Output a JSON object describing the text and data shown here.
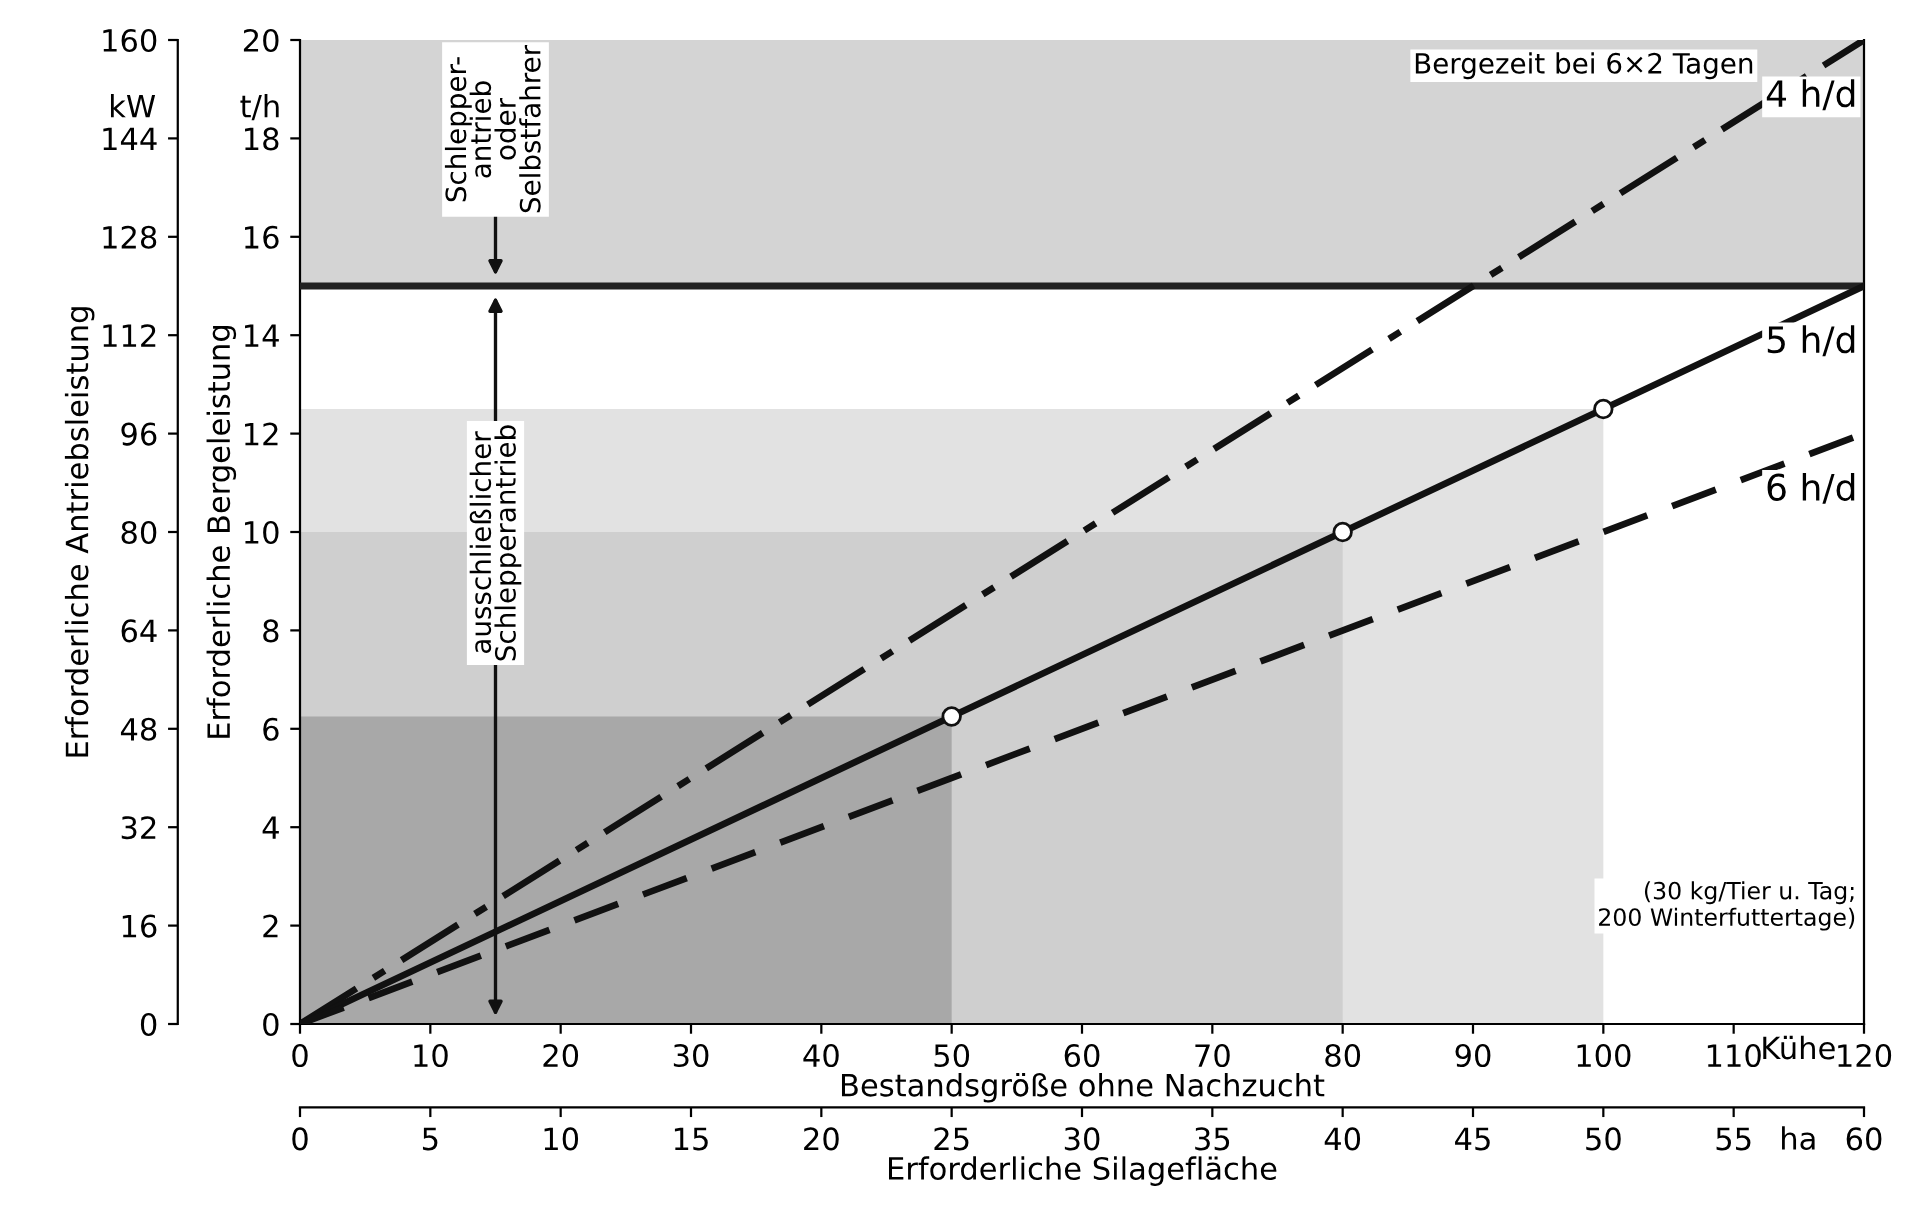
{
  "chart_data": {
    "type": "line",
    "xlabel": "Bestandsgröße ohne Nachzucht",
    "ylabel": "Erforderliche Bergeleistung",
    "y2label": "Erforderliche Antriebsleistung",
    "x2label": "Erforderliche Silagefläche",
    "xlim": [
      0,
      120
    ],
    "xticks": [
      0,
      10,
      20,
      30,
      40,
      50,
      60,
      70,
      80,
      90,
      100,
      110,
      120
    ],
    "ylim": [
      0,
      20
    ],
    "yticks": [
      0,
      2,
      4,
      6,
      8,
      10,
      12,
      14,
      16,
      18,
      20
    ],
    "y2lim": [
      0,
      160
    ],
    "y2ticks": [
      0,
      16,
      32,
      48,
      64,
      80,
      96,
      112,
      128,
      144,
      160
    ],
    "x2lim": [
      0,
      60
    ],
    "x2ticks": [
      0,
      5,
      10,
      15,
      20,
      25,
      30,
      35,
      40,
      45,
      50,
      55,
      60
    ],
    "series": [
      {
        "type": "area",
        "color": "#e2e2e2",
        "x": [
          0,
          100
        ],
        "values": [
          12.5,
          12.5
        ]
      },
      {
        "type": "area",
        "color": "#cfcfcf",
        "x": [
          0,
          80
        ],
        "values": [
          10,
          10
        ]
      },
      {
        "type": "area",
        "color": "#a8a8a8",
        "x": [
          0,
          50
        ],
        "values": [
          6.25,
          6.25
        ]
      },
      {
        "name": "4 h/d",
        "color": "#111111",
        "line_style": "dashdot",
        "x": [
          0,
          120
        ],
        "values": [
          0,
          20
        ]
      },
      {
        "name": "5 h/d",
        "color": "#111111",
        "line_style": "solid",
        "x": [
          0,
          50,
          80,
          100,
          120
        ],
        "values": [
          0,
          6.25,
          10,
          12.5,
          15
        ]
      },
      {
        "name": "6 h/d",
        "color": "#111111",
        "line_style": "dashed",
        "x": [
          0,
          120
        ],
        "values": [
          0,
          12
        ]
      },
      {
        "type": "scatter",
        "color": "#ffffff",
        "marker": "circle",
        "x": [
          50,
          80,
          100
        ],
        "values": [
          6.25,
          10,
          12.5
        ]
      }
    ],
    "bands": [
      {
        "axis": "y",
        "from": 15,
        "to": 20,
        "label": "Bergezeit bei 6×2 Tagen",
        "color": "#d4d4d4"
      }
    ],
    "ref_lines": [
      {
        "axis": "y",
        "value": 15,
        "label": null,
        "color": "#222222",
        "line_style": "solid"
      }
    ],
    "annotations": [
      "t/h",
      "kW",
      "Kühe",
      "ha",
      "Schlepper-\nantrieb\noder\nSelbstfahrer",
      "ausschließlicher\nSchlepperantrieb",
      "(30 kg/Tier u. Tag;\n200 Winterfuttertage)"
    ],
    "grid": false,
    "legend": false
  }
}
